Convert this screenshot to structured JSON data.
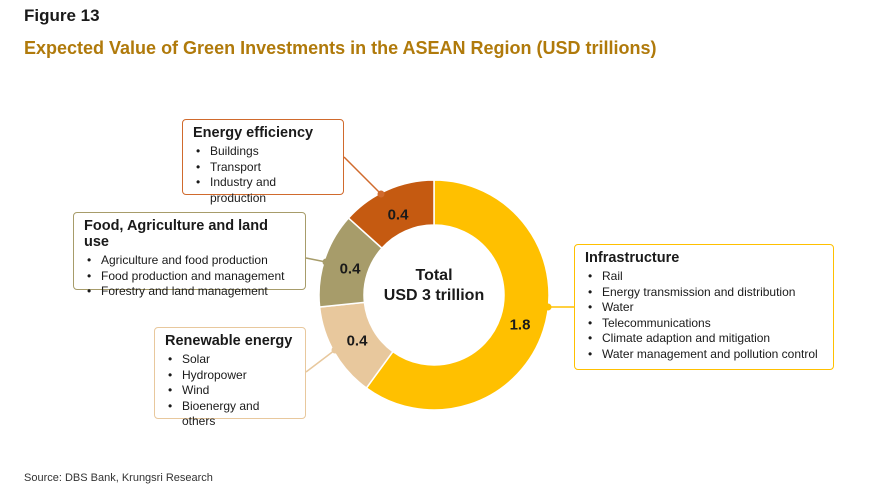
{
  "figure_label": "Figure 13",
  "title": "Expected Value of Green Investments in the ASEAN Region (USD trillions)",
  "source": "Source: DBS Bank, Krungsri Research",
  "colors": {
    "infrastructure": "#ffc000",
    "energy_efficiency": "#c55a11",
    "food": "#a79c6a",
    "renewable": "#e8c89d",
    "title": "#b07a0b",
    "box_orange": "#d06a2d",
    "box_olive": "#a79c6a",
    "box_tan": "#e8c89d",
    "box_gold": "#ffc000"
  },
  "chart_data": {
    "type": "pie",
    "donut": true,
    "center_label_line1": "Total",
    "center_label_line2": "USD 3 trillion",
    "series": [
      {
        "name": "Infrastructure",
        "value": 1.8,
        "label": "1.8"
      },
      {
        "name": "Renewable energy",
        "value": 0.4,
        "label": "0.4"
      },
      {
        "name": "Food, Agriculture and land use",
        "value": 0.4,
        "label": "0.4"
      },
      {
        "name": "Energy efficiency",
        "value": 0.4,
        "label": "0.4"
      }
    ]
  },
  "boxes": {
    "energy": {
      "heading": "Energy efficiency",
      "items": [
        "Buildings",
        "Transport",
        "Industry and production"
      ]
    },
    "food": {
      "heading": "Food, Agriculture and land use",
      "items": [
        "Agriculture and food production",
        "Food production and management",
        "Forestry and land management"
      ]
    },
    "renewable": {
      "heading": "Renewable energy",
      "items": [
        "Solar",
        "Hydropower",
        "Wind",
        "Bioenergy and others"
      ]
    },
    "infra": {
      "heading": "Infrastructure",
      "items": [
        "Rail",
        "Energy transmission and distribution",
        "Water",
        "Telecommunications",
        "Climate adaption and mitigation",
        "Water management and pollution control"
      ]
    }
  }
}
